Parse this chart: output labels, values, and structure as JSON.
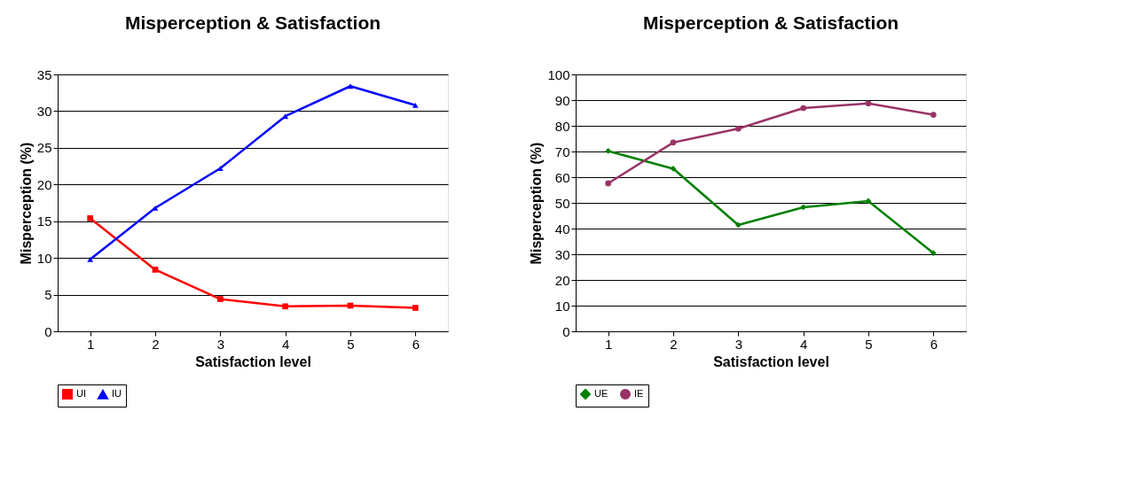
{
  "chart_data": [
    {
      "type": "line",
      "title": "Misperception & Satisfaction",
      "xlabel": "Satisfaction level",
      "ylabel": "Misperception (%)",
      "categories": [
        "1",
        "2",
        "3",
        "4",
        "5",
        "6"
      ],
      "ylim": [
        0,
        35
      ],
      "yticks": [
        0,
        5,
        10,
        15,
        20,
        25,
        30,
        35
      ],
      "grid": "y",
      "legend": "bottom",
      "series": [
        {
          "name": "UI",
          "color": "#ff0000",
          "marker": "square",
          "values": [
            15.4,
            8.4,
            4.4,
            3.4,
            3.5,
            3.2
          ]
        },
        {
          "name": "IU",
          "color": "#0000ff",
          "marker": "triangle",
          "values": [
            9.8,
            16.8,
            22.2,
            29.3,
            33.4,
            30.8
          ]
        }
      ]
    },
    {
      "type": "line",
      "title": "Misperception & Satisfaction",
      "xlabel": "Satisfaction level",
      "ylabel": "Misperception (%)",
      "categories": [
        "1",
        "2",
        "3",
        "4",
        "5",
        "6"
      ],
      "ylim": [
        0,
        100
      ],
      "yticks": [
        0,
        10,
        20,
        30,
        40,
        50,
        60,
        70,
        80,
        90,
        100
      ],
      "grid": "y",
      "legend": "bottom",
      "series": [
        {
          "name": "UE",
          "color": "#008000",
          "marker": "diamond",
          "values": [
            70.2,
            63.3,
            41.4,
            48.3,
            50.7,
            30.4
          ]
        },
        {
          "name": "IE",
          "color": "#993366",
          "marker": "circle",
          "values": [
            57.6,
            73.5,
            78.9,
            86.9,
            88.7,
            84.3
          ]
        }
      ]
    }
  ]
}
